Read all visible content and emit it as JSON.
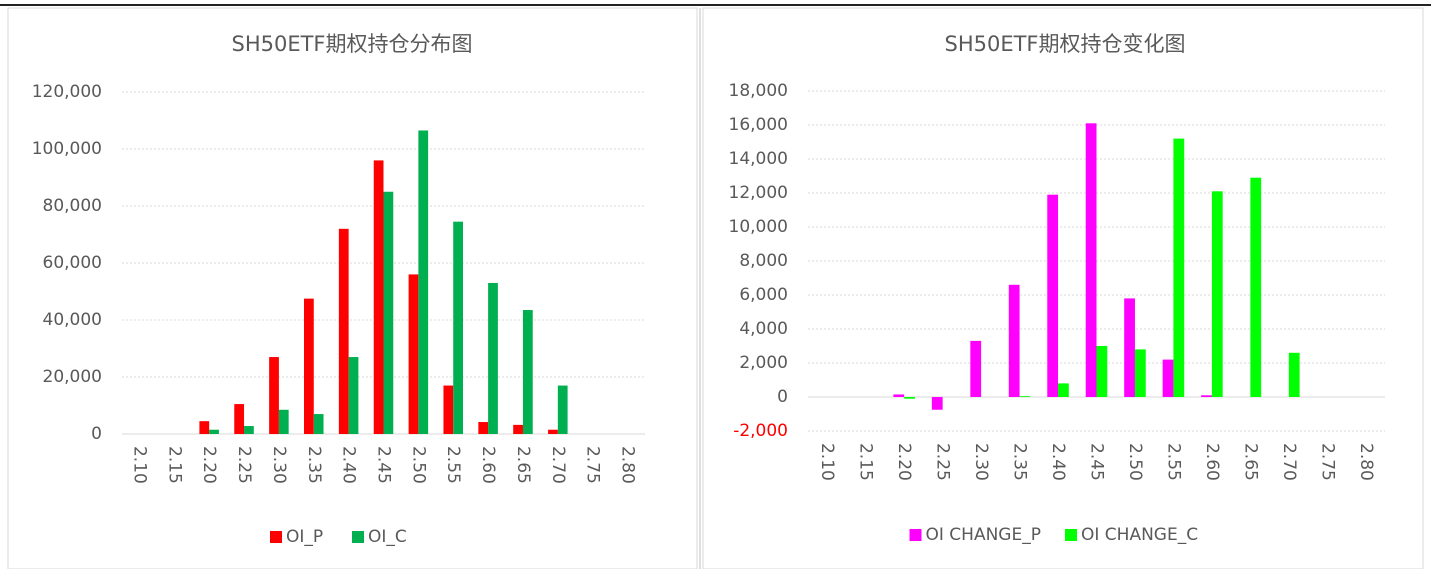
{
  "chart_data": [
    {
      "type": "bar",
      "title": "SH50ETF期权持仓分布图",
      "categories": [
        "2.10",
        "2.15",
        "2.20",
        "2.25",
        "2.30",
        "2.35",
        "2.40",
        "2.45",
        "2.50",
        "2.55",
        "2.60",
        "2.65",
        "2.70",
        "2.75",
        "2.80"
      ],
      "series": [
        {
          "name": "OI_P",
          "color": "#ff0000",
          "values": [
            0,
            0,
            4500,
            10500,
            27000,
            47500,
            72000,
            96000,
            56000,
            17000,
            4200,
            3200,
            1500,
            0,
            0
          ]
        },
        {
          "name": "OI_C",
          "color": "#00b050",
          "values": [
            0,
            0,
            1500,
            2800,
            8500,
            7000,
            27000,
            85000,
            106500,
            74500,
            53000,
            43500,
            17000,
            0,
            0
          ]
        }
      ],
      "ylim": [
        0,
        120000
      ],
      "yticks": [
        0,
        {
          "value": 20000,
          "label": "20,000"
        },
        {
          "value": 40000,
          "label": "40,000"
        },
        {
          "value": 60000,
          "label": "60,000"
        },
        {
          "value": 80000,
          "label": "80,000"
        },
        {
          "value": 100000,
          "label": "100,000"
        },
        {
          "value": 120000,
          "label": "120,000"
        }
      ],
      "grid": true,
      "legend": "bottom"
    },
    {
      "type": "bar",
      "title": "SH50ETF期权持仓变化图",
      "categories": [
        "2.10",
        "2.15",
        "2.20",
        "2.25",
        "2.30",
        "2.35",
        "2.40",
        "2.45",
        "2.50",
        "2.55",
        "2.60",
        "2.65",
        "2.70",
        "2.75",
        "2.80"
      ],
      "series": [
        {
          "name": "OI CHANGE_P",
          "color": "#ff00ff",
          "values": [
            0,
            0,
            150,
            -750,
            3300,
            6600,
            11900,
            16100,
            5800,
            2200,
            100,
            0,
            0,
            0,
            0
          ]
        },
        {
          "name": "OI CHANGE_C",
          "color": "#00ff00",
          "values": [
            0,
            0,
            -100,
            0,
            0,
            50,
            800,
            3000,
            2800,
            15200,
            12100,
            12900,
            2600,
            0,
            0
          ]
        }
      ],
      "ylim": [
        -2000,
        18000
      ],
      "yticks": [
        {
          "value": -2000,
          "label": "-2,000"
        },
        0,
        {
          "value": 2000,
          "label": "2,000"
        },
        {
          "value": 4000,
          "label": "4,000"
        },
        {
          "value": 6000,
          "label": "6,000"
        },
        {
          "value": 8000,
          "label": "8,000"
        },
        {
          "value": 10000,
          "label": "10,000"
        },
        {
          "value": 12000,
          "label": "12,000"
        },
        {
          "value": 14000,
          "label": "14,000"
        },
        {
          "value": 16000,
          "label": "16,000"
        },
        {
          "value": 18000,
          "label": "18,000"
        }
      ],
      "grid": true,
      "legend": "bottom",
      "negative_label_color": "#ff0000"
    }
  ]
}
